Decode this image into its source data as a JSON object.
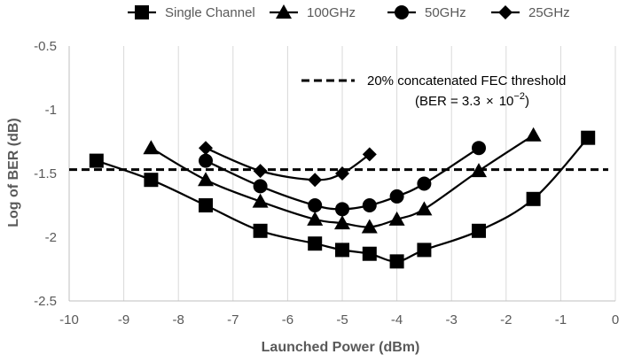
{
  "chart_data": {
    "type": "line",
    "xlabel": "Launched Power (dBm)",
    "ylabel": "Log of BER (dB)",
    "xlim": [
      -10,
      0
    ],
    "ylim": [
      -2.5,
      -0.5
    ],
    "x_ticks": [
      "-10",
      "-9",
      "-8",
      "-7",
      "-6",
      "-5",
      "-4",
      "-3",
      "-2",
      "-1",
      "0"
    ],
    "y_ticks": [
      "-0.5",
      "-1",
      "-1.5",
      "-2",
      "-2.5"
    ],
    "grid": "vertical",
    "legend_position": "top",
    "series": [
      {
        "name": "Single Channel",
        "marker": "square",
        "color": "#000000",
        "x": [
          -9.5,
          -8.5,
          -7.5,
          -6.5,
          -5.5,
          -5,
          -4.5,
          -4,
          -3.5,
          -2.5,
          -1.5,
          -0.5
        ],
        "y": [
          -1.4,
          -1.55,
          -1.75,
          -1.95,
          -2.05,
          -2.1,
          -2.13,
          -2.19,
          -2.1,
          -1.95,
          -1.7,
          -1.22
        ]
      },
      {
        "name": "100GHz",
        "marker": "triangle",
        "color": "#000000",
        "x": [
          -8.5,
          -7.5,
          -6.5,
          -5.5,
          -5,
          -4.5,
          -4,
          -3.5,
          -2.5,
          -1.5
        ],
        "y": [
          -1.3,
          -1.55,
          -1.72,
          -1.86,
          -1.89,
          -1.92,
          -1.86,
          -1.78,
          -1.48,
          -1.2
        ]
      },
      {
        "name": "50GHz",
        "marker": "circle",
        "color": "#000000",
        "x": [
          -7.5,
          -6.5,
          -5.5,
          -5,
          -4.5,
          -4,
          -3.5,
          -2.5
        ],
        "y": [
          -1.4,
          -1.6,
          -1.75,
          -1.78,
          -1.75,
          -1.68,
          -1.58,
          -1.3
        ]
      },
      {
        "name": "25GHz",
        "marker": "diamond",
        "color": "#000000",
        "x": [
          -7.5,
          -6.5,
          -5.5,
          -5,
          -4.5
        ],
        "y": [
          -1.3,
          -1.48,
          -1.55,
          -1.5,
          -1.35
        ]
      }
    ],
    "threshold": {
      "y": -1.47,
      "style": "dashed",
      "label": "20% concatenated FEC threshold",
      "sublabel_prefix": "(BER = 3.3 ",
      "sublabel_times": "×",
      "sublabel_base": "10",
      "sublabel_exp": "−2",
      "sublabel_suffix": ")"
    }
  }
}
